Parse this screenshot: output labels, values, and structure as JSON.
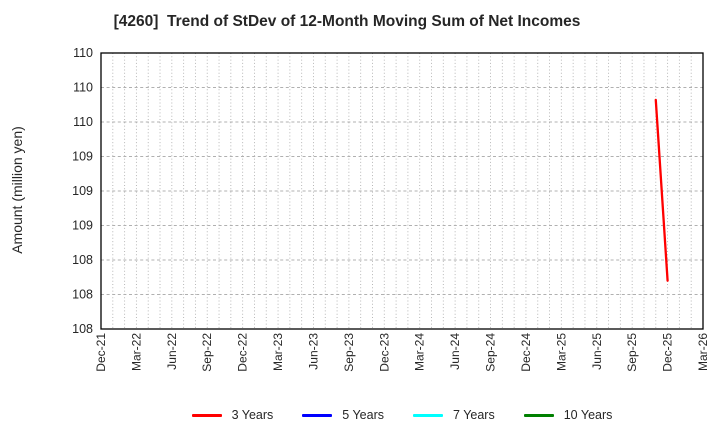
{
  "chart_data": {
    "type": "line",
    "title": "[4260]  Trend of StDev of 12-Month Moving Sum of Net Incomes",
    "ylabel": "Amount (million yen)",
    "xlabel": "",
    "ylim": [
      108,
      110
    ],
    "y_tick_values": [
      110,
      109.75,
      109.5,
      109.25,
      109,
      108.75,
      108.5,
      108.25,
      108
    ],
    "y_tick_labels": [
      "110",
      "110",
      "110",
      "109",
      "109",
      "109",
      "108",
      "108",
      "108"
    ],
    "x_ticks": [
      "Dec-21",
      "Mar-22",
      "Jun-22",
      "Sep-22",
      "Dec-22",
      "Mar-23",
      "Jun-23",
      "Sep-23",
      "Dec-23",
      "Mar-24",
      "Jun-24",
      "Sep-24",
      "Dec-24",
      "Mar-25",
      "Jun-25",
      "Sep-25",
      "Dec-25",
      "Mar-26"
    ],
    "x_start": "Dec-21",
    "x_end": "Mar-26",
    "months_total": 51,
    "x_minor_grid": "monthly",
    "grid": true,
    "legend_position": "bottom",
    "series": [
      {
        "name": "3 Years",
        "color": "#ff0000",
        "points": [
          {
            "x": "Nov-25",
            "y": 109.66
          },
          {
            "x": "Dec-25",
            "y": 108.35
          }
        ]
      },
      {
        "name": "5 Years",
        "color": "#0000ff",
        "points": []
      },
      {
        "name": "7 Years",
        "color": "#00ffff",
        "points": []
      },
      {
        "name": "10 Years",
        "color": "#008000",
        "points": []
      }
    ],
    "colors": {
      "axis_frame": "#000000",
      "grid_line": "#b0b0b0",
      "text": "#262626",
      "background": "#ffffff"
    }
  }
}
